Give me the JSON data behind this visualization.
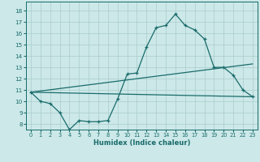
{
  "xlabel": "Humidex (Indice chaleur)",
  "bg_color": "#cce8e8",
  "grid_color": "#aacccc",
  "line_color": "#1a6b6b",
  "xlim": [
    -0.5,
    23.5
  ],
  "ylim": [
    7.5,
    18.8
  ],
  "xticks": [
    0,
    1,
    2,
    3,
    4,
    5,
    6,
    7,
    8,
    9,
    10,
    11,
    12,
    13,
    14,
    15,
    16,
    17,
    18,
    19,
    20,
    21,
    22,
    23
  ],
  "yticks": [
    8,
    9,
    10,
    11,
    12,
    13,
    14,
    15,
    16,
    17,
    18
  ],
  "line1_x": [
    0,
    1,
    2,
    3,
    4,
    5,
    6,
    7,
    8,
    9,
    10,
    11,
    12,
    13,
    14,
    15,
    16,
    17,
    18,
    19,
    20,
    21,
    22,
    23
  ],
  "line1_y": [
    10.8,
    10.0,
    9.8,
    9.0,
    7.5,
    8.3,
    8.2,
    8.2,
    8.3,
    10.2,
    12.4,
    12.5,
    14.8,
    16.5,
    16.7,
    17.7,
    16.7,
    16.3,
    15.5,
    13.0,
    13.0,
    12.3,
    11.0,
    10.4
  ],
  "line2_x": [
    0,
    23
  ],
  "line2_y": [
    10.8,
    13.3
  ],
  "line3_x": [
    0,
    23
  ],
  "line3_y": [
    10.8,
    10.4
  ]
}
